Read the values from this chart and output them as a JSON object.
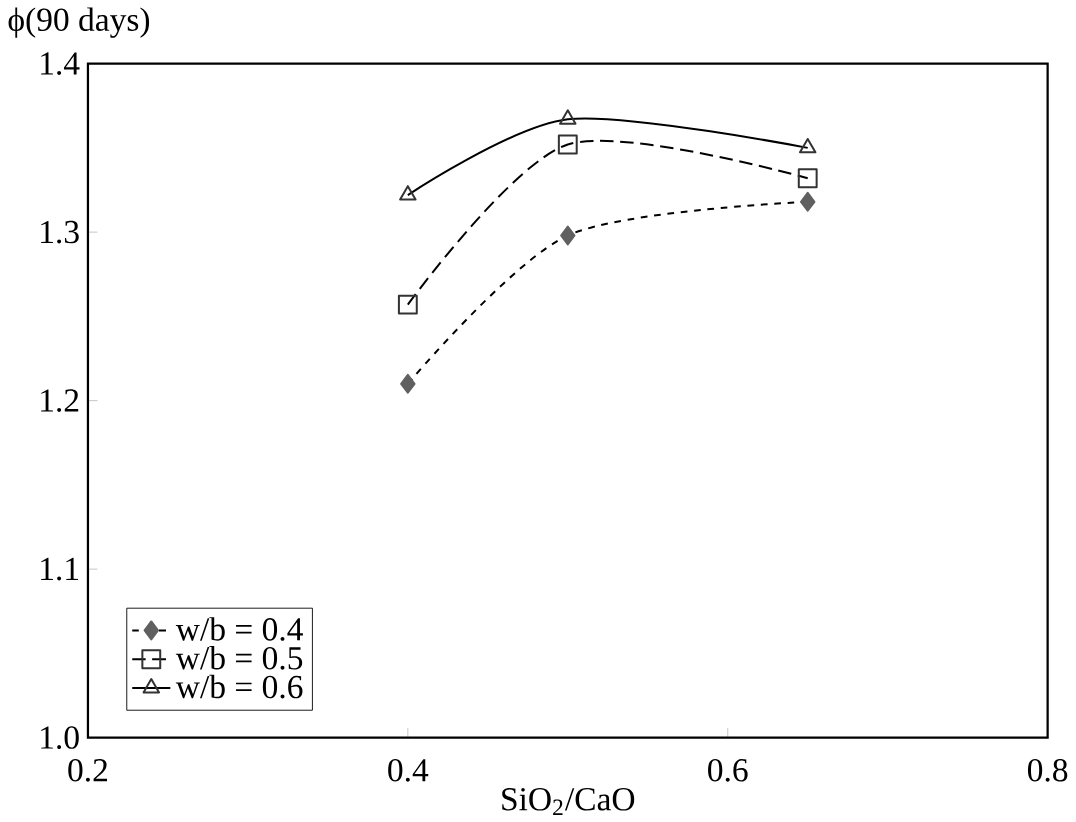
{
  "chart_data": {
    "type": "line",
    "ylabel": "ϕ(90 days)",
    "xlabel": "SiO$_{2}$/CaO",
    "x": [
      0.4,
      0.5,
      0.65
    ],
    "series": [
      {
        "name": "w/b = 0.4",
        "color": "#606060",
        "values": [
          1.21,
          1.298,
          1.318
        ],
        "marker": "diamond",
        "line_style": "dotted"
      },
      {
        "name": "w/b = 0.5",
        "color": "#333333",
        "values": [
          1.257,
          1.352,
          1.332
        ],
        "marker": "square",
        "line_style": "dashed"
      },
      {
        "name": "w/b = 0.6",
        "color": "#333333",
        "values": [
          1.322,
          1.367,
          1.35
        ],
        "marker": "triangle",
        "line_style": "solid"
      }
    ],
    "xlim": [
      0.2,
      0.8
    ],
    "ylim": [
      1.0,
      1.4
    ],
    "xticks": [
      {
        "value": 0.2,
        "label": "0.2"
      },
      {
        "value": 0.4,
        "label": "0.4"
      },
      {
        "value": 0.6,
        "label": "0.6"
      },
      {
        "value": 0.8,
        "label": "0.8"
      }
    ],
    "yticks": [
      {
        "value": 1.0,
        "label": "1.0"
      },
      {
        "value": 1.1,
        "label": "1.1"
      },
      {
        "value": 1.2,
        "label": "1.2"
      },
      {
        "value": 1.3,
        "label": "1.3"
      },
      {
        "value": 1.4,
        "label": "1.4"
      }
    ],
    "grid": false,
    "legend": "bottom left"
  }
}
